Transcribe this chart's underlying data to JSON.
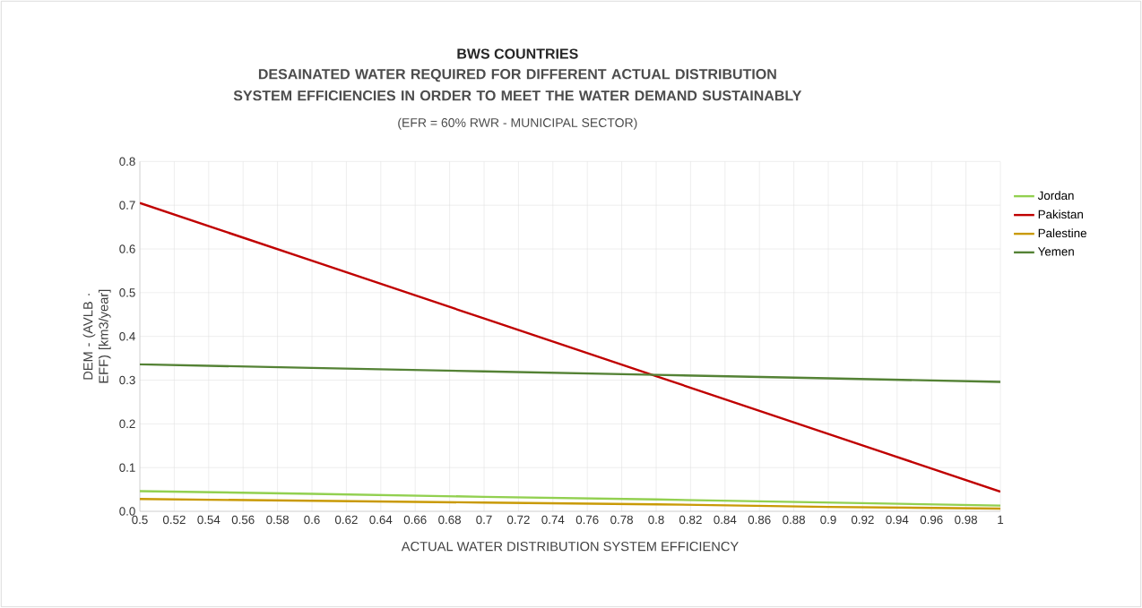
{
  "chart_data": {
    "type": "line",
    "title": "BWS COUNTRIES",
    "subtitle": "DESAINATED WATER REQUIRED FOR DIFFERENT ACTUAL DISTRIBUTION SYSTEM EFFICIENCIES IN ORDER TO MEET THE WATER DEMAND SUSTAINABLY",
    "annotations": [
      "(EFR = 60% RWR - MUNICIPAL SECTOR)"
    ],
    "xlabel": "ACTUAL WATER DISTRIBUTION SYSTEM EFFICIENCY",
    "ylabel": "DEM - (AVLB · EFF) [km3/year]",
    "x": [
      0.5,
      0.6,
      0.7,
      0.8,
      0.9,
      1.0
    ],
    "series": [
      {
        "name": "Jordan",
        "color": "#92d050",
        "values": [
          0.046,
          0.04,
          0.033,
          0.027,
          0.02,
          0.013
        ]
      },
      {
        "name": "Pakistan",
        "color": "#c00000",
        "values": [
          0.705,
          0.573,
          0.441,
          0.309,
          0.177,
          0.045
        ]
      },
      {
        "name": "Palestine",
        "color": "#c99a06",
        "values": [
          0.028,
          0.024,
          0.02,
          0.016,
          0.01,
          0.006
        ]
      },
      {
        "name": "Yemen",
        "color": "#548235",
        "values": [
          0.336,
          0.328,
          0.32,
          0.312,
          0.304,
          0.296
        ]
      }
    ],
    "xlim": [
      0.5,
      1
    ],
    "xticks": [
      0.5,
      0.52,
      0.54,
      0.56,
      0.58,
      0.6,
      0.62,
      0.64,
      0.66,
      0.68,
      0.7,
      0.72,
      0.74,
      0.76,
      0.78,
      0.8,
      0.82,
      0.84,
      0.86,
      0.88,
      0.9,
      0.92,
      0.94,
      0.96,
      0.98,
      1
    ],
    "ylim": [
      0,
      0.8
    ],
    "yticks": [
      {
        "value": 0,
        "label": "0.0"
      },
      0.1,
      0.2,
      0.3,
      0.4,
      0.5,
      0.6,
      0.7,
      0.8
    ],
    "grid": true,
    "legend": "right",
    "marker": "none",
    "line_style": "solid"
  }
}
